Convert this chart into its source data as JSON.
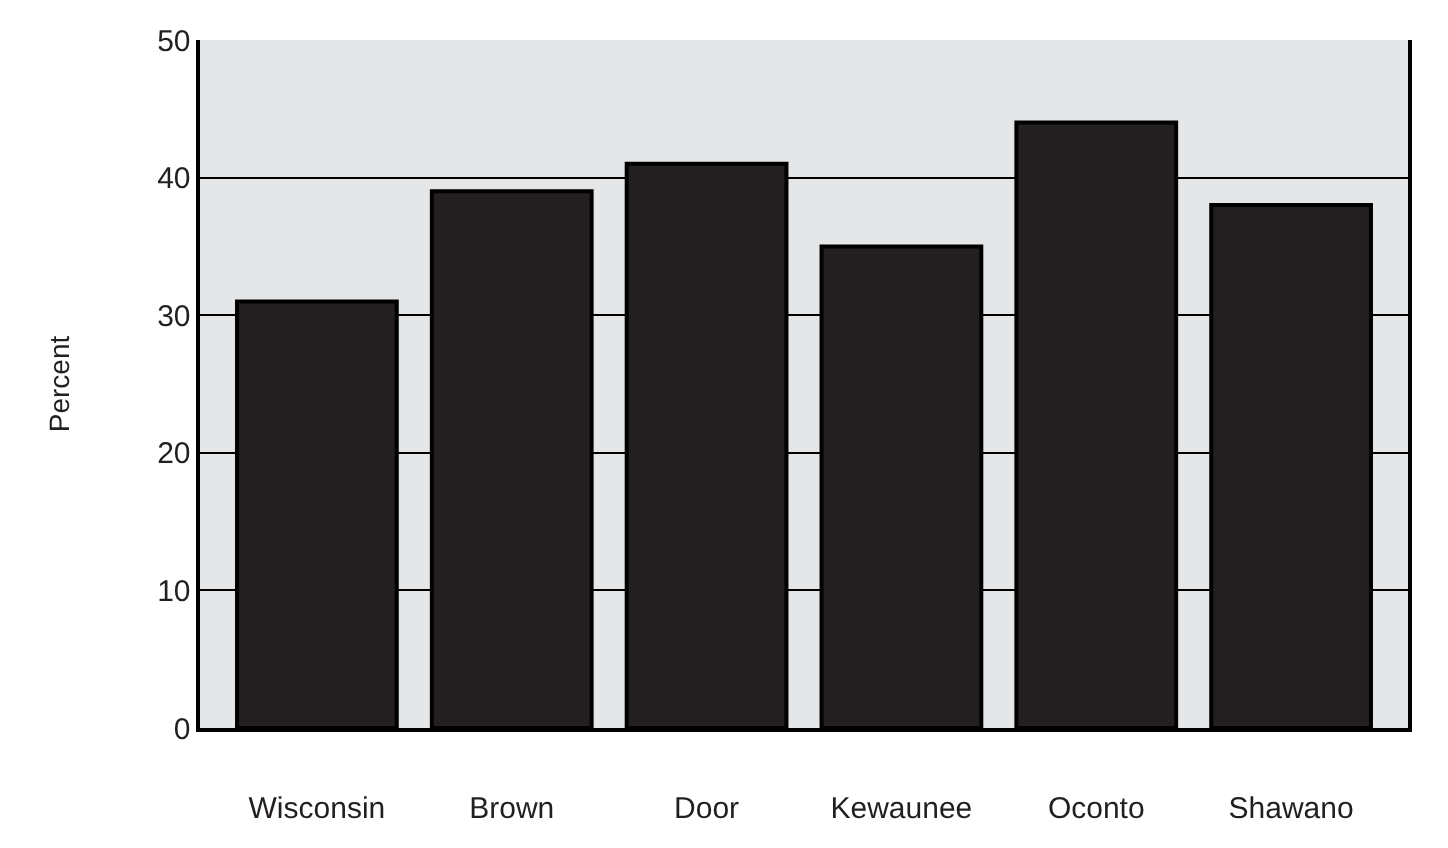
{
  "chart_data": {
    "type": "bar",
    "ylabel": "Percent",
    "categories": [
      "Wisconsin",
      "Brown",
      "Door",
      "Kewaunee",
      "Oconto",
      "Shawano"
    ],
    "values": [
      31,
      39,
      41,
      35,
      44,
      38
    ],
    "color": "#231f20",
    "ylim": [
      0,
      50
    ],
    "yticks": [
      0,
      10,
      20,
      30,
      40,
      50
    ],
    "grid": "y"
  }
}
